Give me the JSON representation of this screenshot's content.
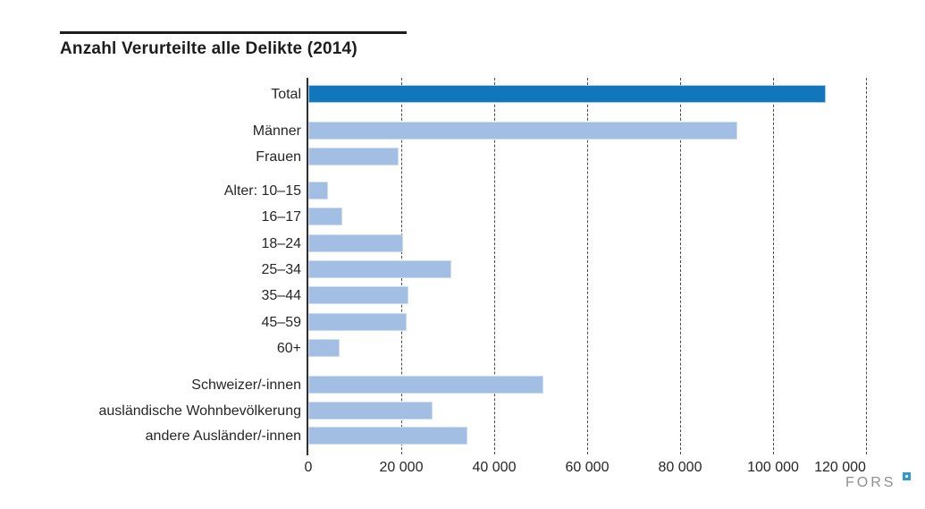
{
  "title": "Anzahl Verurteilte alle Delikte (2014)",
  "chart_data": {
    "type": "bar",
    "orientation": "horizontal",
    "title": "Anzahl Verurteilte alle Delikte (2014)",
    "categories": [
      "Total",
      "Männer",
      "Frauen",
      "Alter: 10–15",
      "16–17",
      "18–24",
      "25–34",
      "35–44",
      "45–59",
      "60+",
      "Schweizer/-innen",
      "ausländische Wohnbevölkerung",
      "andere Ausländer/-innen"
    ],
    "values": [
      111000,
      92000,
      19000,
      3900,
      6900,
      20000,
      30400,
      21100,
      20700,
      6300,
      50100,
      26300,
      33800
    ],
    "groups": [
      [
        "Total"
      ],
      [
        "Männer",
        "Frauen"
      ],
      [
        "Alter: 10–15",
        "16–17",
        "18–24",
        "25–34",
        "35–44",
        "45–59",
        "60+"
      ],
      [
        "Schweizer/-innen",
        "ausländische Wohnbevölkerung",
        "andere Ausländer/-innen"
      ]
    ],
    "highlight_category": "Total",
    "xlabel": "",
    "ylabel": "",
    "xlim": [
      0,
      132000
    ],
    "grid": "vertical-dashed-every-20000",
    "legend": "none",
    "x_ticks": [
      {
        "value": 0,
        "label": "0"
      },
      {
        "value": 20000,
        "label": "20 000"
      },
      {
        "value": 40000,
        "label": "40 000"
      },
      {
        "value": 60000,
        "label": "60 000"
      },
      {
        "value": 80000,
        "label": "80 000"
      },
      {
        "value": 100000,
        "label": "100 000"
      },
      {
        "value": 120000,
        "label": "120 000"
      }
    ],
    "colors": {
      "highlight": "#1276bd",
      "default": "#a2bfe3"
    }
  },
  "footer": {
    "logo_text": "FORS"
  }
}
